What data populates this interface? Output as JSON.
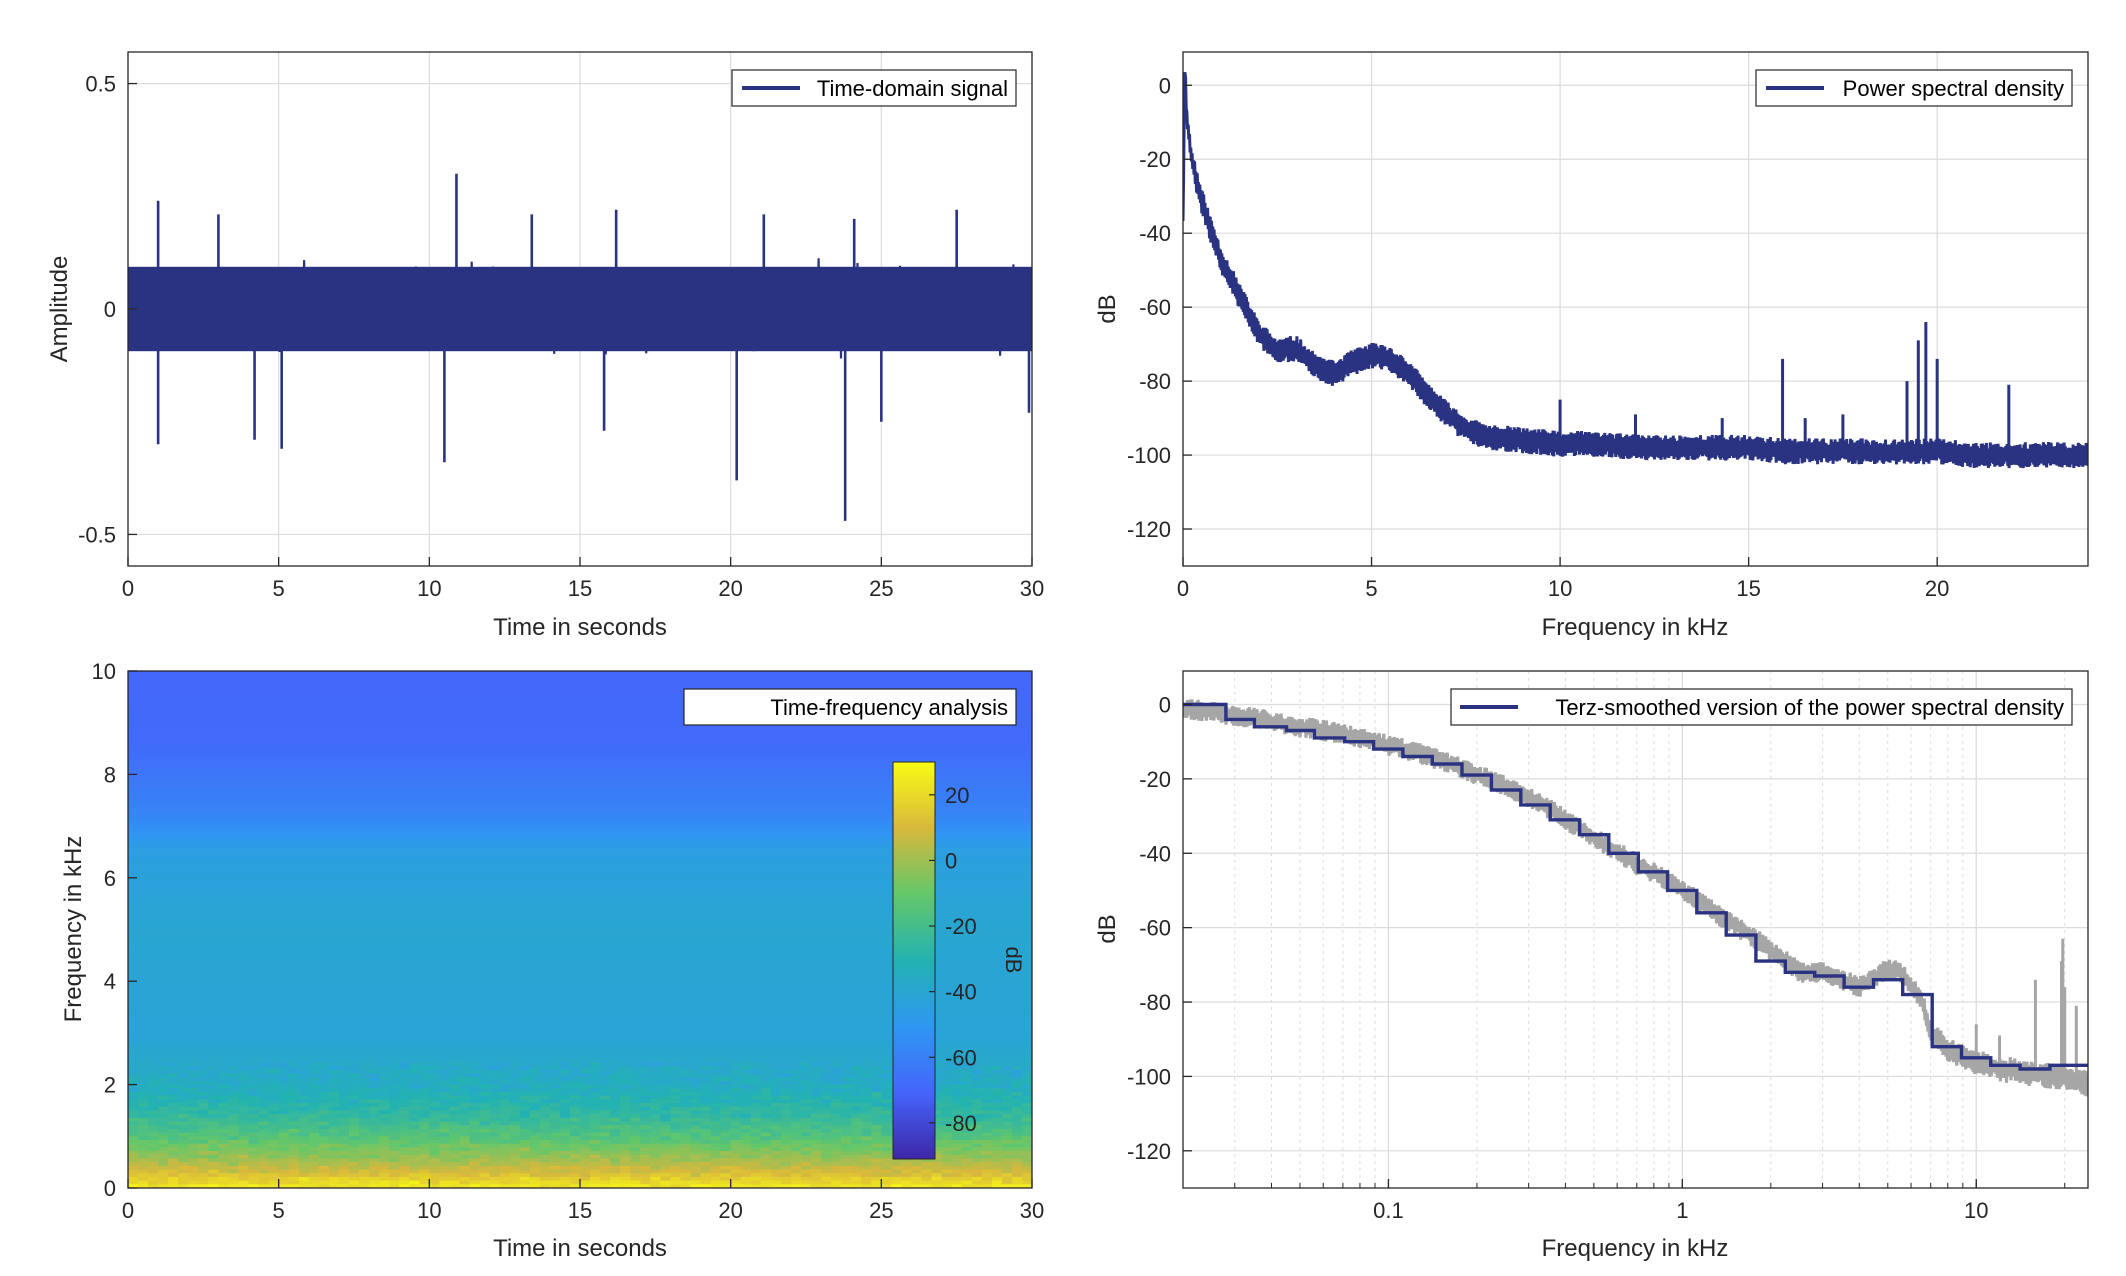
{
  "colors": {
    "series": "#2a3382",
    "raw": "#a6a6a6",
    "grid": "#dcdcdc",
    "axis": "#262626"
  },
  "chart_data": [
    {
      "id": "time_domain",
      "type": "line",
      "xlabel": "Time in seconds",
      "ylabel": "Amplitude",
      "xlim": [
        0,
        30
      ],
      "ylim": [
        -0.57,
        0.57
      ],
      "xticks": [
        0,
        5,
        10,
        15,
        20,
        25,
        30
      ],
      "yticks": [
        0.5,
        0,
        -0.5
      ],
      "ytick_labels": [
        "0.5",
        "0",
        "-0.5"
      ],
      "grid": true,
      "legend": {
        "label": "Time-domain signal",
        "location": "top-right"
      },
      "series": [
        {
          "name": "Time-domain signal",
          "envelope_amplitude": 0.12,
          "peaks": [
            {
              "t": 1.0,
              "v": 0.24
            },
            {
              "t": 1.0,
              "v": -0.3
            },
            {
              "t": 3.0,
              "v": 0.21
            },
            {
              "t": 4.2,
              "v": -0.29
            },
            {
              "t": 5.1,
              "v": -0.31
            },
            {
              "t": 10.5,
              "v": -0.34
            },
            {
              "t": 10.9,
              "v": 0.3
            },
            {
              "t": 13.4,
              "v": 0.21
            },
            {
              "t": 15.8,
              "v": -0.27
            },
            {
              "t": 16.2,
              "v": 0.22
            },
            {
              "t": 20.2,
              "v": -0.38
            },
            {
              "t": 21.1,
              "v": 0.21
            },
            {
              "t": 23.8,
              "v": -0.47
            },
            {
              "t": 24.1,
              "v": 0.2
            },
            {
              "t": 25.0,
              "v": -0.25
            },
            {
              "t": 27.5,
              "v": 0.22
            },
            {
              "t": 29.9,
              "v": -0.23
            }
          ]
        }
      ]
    },
    {
      "id": "psd",
      "type": "line",
      "xlabel": "Frequency in kHz",
      "ylabel": "dB",
      "xlim": [
        0,
        24
      ],
      "ylim": [
        -130,
        9
      ],
      "xticks": [
        0,
        5,
        10,
        15,
        20
      ],
      "yticks": [
        0,
        -20,
        -40,
        -60,
        -80,
        -100,
        -120
      ],
      "grid": true,
      "legend": {
        "label": "Power spectral density",
        "location": "top-right"
      },
      "series": [
        {
          "name": "Power spectral density",
          "x": [
            0,
            0.05,
            0.1,
            0.2,
            0.4,
            0.7,
            1.0,
            1.5,
            2.0,
            2.5,
            3.0,
            3.5,
            4.0,
            4.5,
            5.0,
            5.5,
            6.0,
            6.5,
            7.0,
            7.5,
            8.0,
            9.0,
            10.0,
            11.0,
            12.0,
            13.0,
            14.0,
            15.0,
            16.0,
            17.0,
            18.0,
            19.0,
            20.0,
            21.0,
            22.0,
            23.0,
            24.0
          ],
          "y": [
            -38,
            5,
            -8,
            -18,
            -28,
            -38,
            -47,
            -57,
            -67,
            -72,
            -71,
            -76,
            -78,
            -75,
            -73,
            -74,
            -78,
            -84,
            -89,
            -93,
            -95,
            -96,
            -97,
            -97,
            -98,
            -98,
            -98,
            -98,
            -99,
            -99,
            -99,
            -99,
            -99,
            -100,
            -100,
            -100,
            -100
          ],
          "spikes": [
            {
              "f": 10.0,
              "db": -85
            },
            {
              "f": 12.0,
              "db": -89
            },
            {
              "f": 14.3,
              "db": -90
            },
            {
              "f": 15.9,
              "db": -74
            },
            {
              "f": 16.5,
              "db": -90
            },
            {
              "f": 17.5,
              "db": -89
            },
            {
              "f": 19.2,
              "db": -80
            },
            {
              "f": 19.5,
              "db": -69
            },
            {
              "f": 19.7,
              "db": -64
            },
            {
              "f": 20.0,
              "db": -74
            },
            {
              "f": 21.9,
              "db": -81
            }
          ]
        }
      ]
    },
    {
      "id": "spectrogram",
      "type": "heatmap",
      "xlabel": "Time in seconds",
      "ylabel": "Frequency in kHz",
      "xlim": [
        0,
        30
      ],
      "ylim": [
        0,
        10
      ],
      "xticks": [
        0,
        5,
        10,
        15,
        20,
        25,
        30
      ],
      "yticks": [
        0,
        2,
        4,
        6,
        8,
        10
      ],
      "legend": {
        "label": "Time-frequency analysis",
        "location": "top-right"
      },
      "colorbar": {
        "label": "dB",
        "range": [
          -91,
          30
        ],
        "ticks": [
          20,
          0,
          -20,
          -40,
          -60,
          -80
        ],
        "colormap": [
          "#3e26a8",
          "#4465fb",
          "#2f97f2",
          "#23b2b2",
          "#64c769",
          "#d8b83c",
          "#f9fb15"
        ]
      },
      "profile": {
        "freq_khz": [
          0,
          0.3,
          0.7,
          1.0,
          1.4,
          2.0,
          3.0,
          5.0,
          6.5,
          7.2,
          8.5,
          10.0
        ],
        "level_db": [
          25,
          10,
          -5,
          -15,
          -25,
          -35,
          -42,
          -40,
          -45,
          -58,
          -68,
          -70
        ]
      }
    },
    {
      "id": "terz_psd",
      "type": "line",
      "xlabel": "Frequency in kHz",
      "ylabel": "dB",
      "xscale": "log",
      "xlim": [
        0.02,
        24
      ],
      "ylim": [
        -130,
        9
      ],
      "xticks": [
        0.1,
        1,
        10
      ],
      "xtick_labels": [
        "0.1",
        "1",
        "10"
      ],
      "yticks": [
        0,
        -20,
        -40,
        -60,
        -80,
        -100,
        -120
      ],
      "grid": true,
      "legend": {
        "label": "Terz-smoothed version of the power spectral density",
        "location": "top-right"
      },
      "series": [
        {
          "name": "Terz-smoothed version of the power spectral density",
          "bands": [
            {
              "lo": 0.02,
              "hi": 0.028,
              "db": 0
            },
            {
              "lo": 0.028,
              "hi": 0.035,
              "db": -4
            },
            {
              "lo": 0.035,
              "hi": 0.045,
              "db": -6
            },
            {
              "lo": 0.045,
              "hi": 0.056,
              "db": -7
            },
            {
              "lo": 0.056,
              "hi": 0.071,
              "db": -9
            },
            {
              "lo": 0.071,
              "hi": 0.089,
              "db": -10
            },
            {
              "lo": 0.089,
              "hi": 0.112,
              "db": -12
            },
            {
              "lo": 0.112,
              "hi": 0.141,
              "db": -14
            },
            {
              "lo": 0.141,
              "hi": 0.178,
              "db": -16
            },
            {
              "lo": 0.178,
              "hi": 0.224,
              "db": -19
            },
            {
              "lo": 0.224,
              "hi": 0.282,
              "db": -23
            },
            {
              "lo": 0.282,
              "hi": 0.355,
              "db": -27
            },
            {
              "lo": 0.355,
              "hi": 0.447,
              "db": -31
            },
            {
              "lo": 0.447,
              "hi": 0.562,
              "db": -35
            },
            {
              "lo": 0.562,
              "hi": 0.708,
              "db": -40
            },
            {
              "lo": 0.708,
              "hi": 0.891,
              "db": -45
            },
            {
              "lo": 0.891,
              "hi": 1.12,
              "db": -50
            },
            {
              "lo": 1.12,
              "hi": 1.41,
              "db": -56
            },
            {
              "lo": 1.41,
              "hi": 1.78,
              "db": -62
            },
            {
              "lo": 1.78,
              "hi": 2.24,
              "db": -69
            },
            {
              "lo": 2.24,
              "hi": 2.82,
              "db": -72
            },
            {
              "lo": 2.82,
              "hi": 3.55,
              "db": -73
            },
            {
              "lo": 3.55,
              "hi": 4.47,
              "db": -76
            },
            {
              "lo": 4.47,
              "hi": 5.62,
              "db": -74
            },
            {
              "lo": 5.62,
              "hi": 7.08,
              "db": -78
            },
            {
              "lo": 7.08,
              "hi": 8.91,
              "db": -92
            },
            {
              "lo": 8.91,
              "hi": 11.2,
              "db": -95
            },
            {
              "lo": 11.2,
              "hi": 14.1,
              "db": -97
            },
            {
              "lo": 14.1,
              "hi": 17.8,
              "db": -98
            },
            {
              "lo": 17.8,
              "hi": 22.4,
              "db": -97
            },
            {
              "lo": 22.4,
              "hi": 24,
              "db": -97
            }
          ]
        },
        {
          "name": "",
          "raw_x": [
            0.02,
            0.03,
            0.05,
            0.08,
            0.1,
            0.15,
            0.2,
            0.3,
            0.4,
            0.5,
            0.7,
            1.0,
            1.4,
            2.0,
            2.5,
            3.0,
            4.0,
            5.0,
            5.5,
            6.5,
            7.0,
            8.0,
            10.0,
            12.0,
            15.0,
            18.0,
            20.0,
            24.0
          ],
          "raw_y": [
            -1,
            -3,
            -6,
            -9,
            -11,
            -15,
            -19,
            -25,
            -31,
            -36,
            -43,
            -50,
            -58,
            -66,
            -72,
            -72,
            -76,
            -71,
            -72,
            -79,
            -88,
            -93,
            -96,
            -98,
            -99,
            -100,
            -100,
            -102
          ],
          "spikes": [
            {
              "f": 10.0,
              "db": -86
            },
            {
              "f": 12.0,
              "db": -89
            },
            {
              "f": 15.9,
              "db": -74
            },
            {
              "f": 19.5,
              "db": -69
            },
            {
              "f": 19.7,
              "db": -63
            },
            {
              "f": 20.0,
              "db": -76
            },
            {
              "f": 21.9,
              "db": -81
            }
          ]
        }
      ]
    }
  ]
}
